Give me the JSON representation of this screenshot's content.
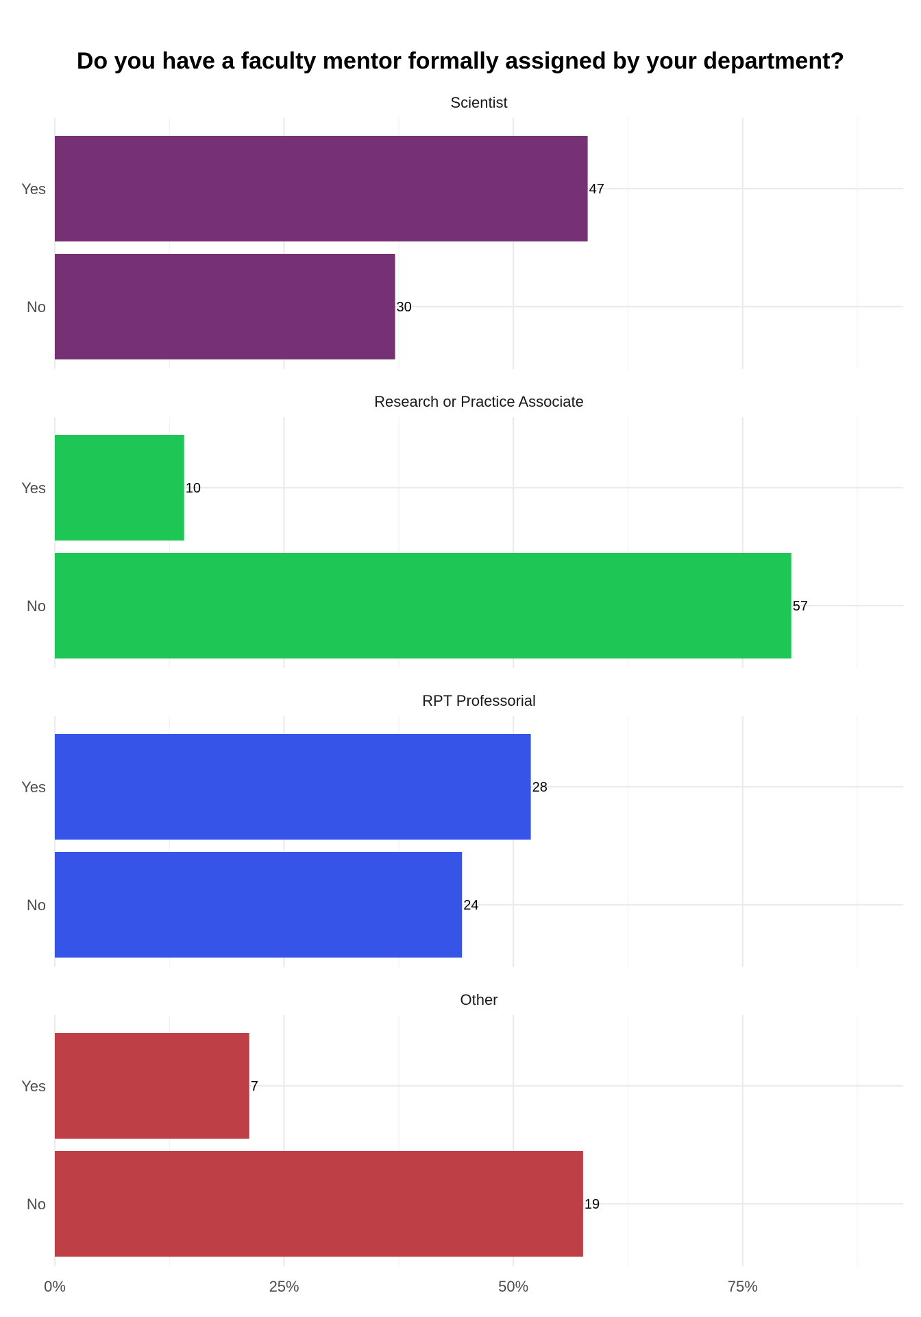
{
  "chart_data": {
    "type": "bar",
    "orientation": "horizontal",
    "title": "Do you have a faculty mentor formally assigned by your department?",
    "categories": [
      "Yes",
      "No"
    ],
    "x_axis": {
      "ticks": [
        0,
        0.25,
        0.5,
        0.75
      ],
      "tick_labels": [
        "0%",
        "25%",
        "50%",
        "75%"
      ],
      "xlim": [
        0,
        0.925
      ],
      "grid": true
    },
    "panels": [
      {
        "name": "Scientist",
        "color": "#763174",
        "bars": [
          {
            "category": "Yes",
            "proportion": 0.581,
            "count": 47,
            "label": "47"
          },
          {
            "category": "No",
            "proportion": 0.371,
            "count": 30,
            "label": "30"
          }
        ]
      },
      {
        "name": "Research or Practice Associate",
        "color": "#1DC655",
        "bars": [
          {
            "category": "Yes",
            "proportion": 0.141,
            "count": 10,
            "label": "10"
          },
          {
            "category": "No",
            "proportion": 0.803,
            "count": 57,
            "label": "57"
          }
        ]
      },
      {
        "name": "RPT Professorial",
        "color": "#3655E8",
        "bars": [
          {
            "category": "Yes",
            "proportion": 0.519,
            "count": 28,
            "label": "28"
          },
          {
            "category": "No",
            "proportion": 0.444,
            "count": 24,
            "label": "24"
          }
        ]
      },
      {
        "name": "Other",
        "color": "#BE3F45",
        "bars": [
          {
            "category": "Yes",
            "proportion": 0.212,
            "count": 7,
            "label": "7"
          },
          {
            "category": "No",
            "proportion": 0.576,
            "count": 19,
            "label": "19"
          }
        ]
      }
    ]
  }
}
